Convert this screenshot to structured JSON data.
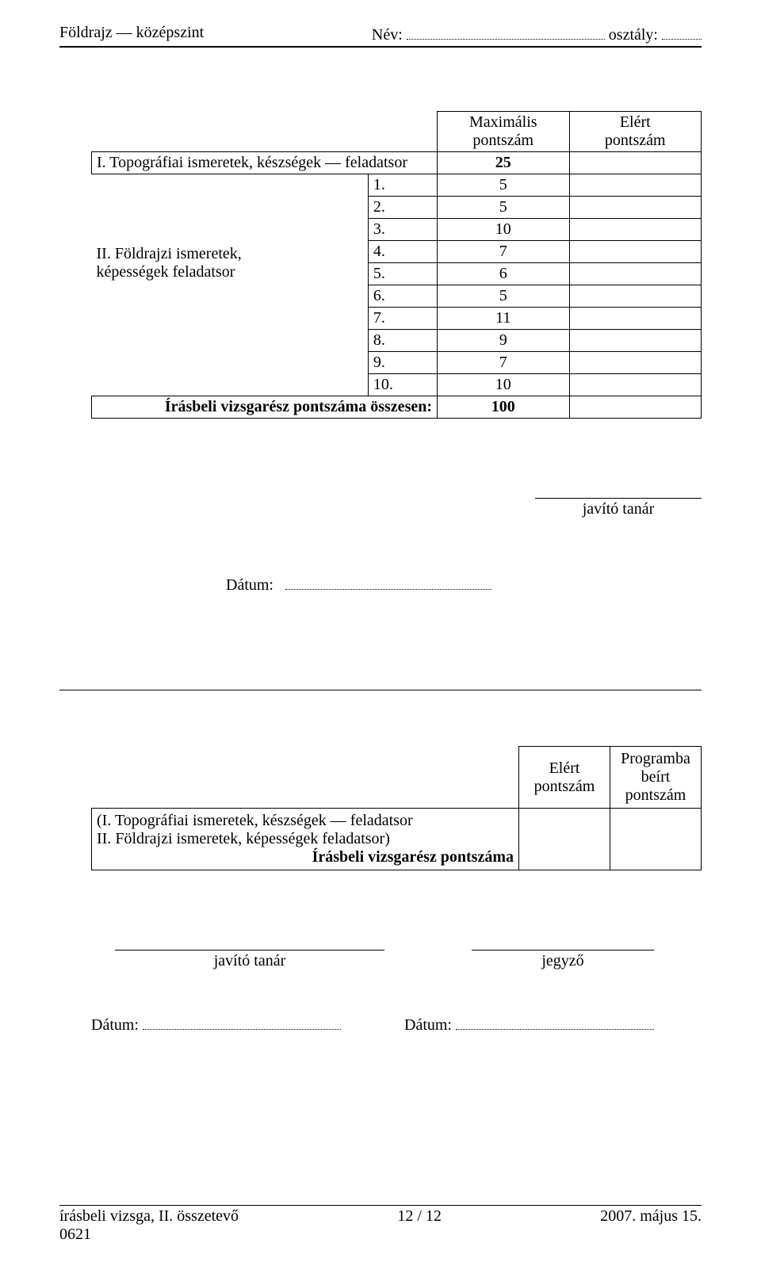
{
  "header": {
    "subject_level": "Földrajz — középszint",
    "name_label": "Név:",
    "class_label": "osztály:"
  },
  "score_table": {
    "head_max_1": "Maximális",
    "head_max_2": "pontszám",
    "head_got_1": "Elért",
    "head_got_2": "pontszám",
    "row_topo_label": "I. Topográfiai ismeretek, készségek — feladatsor",
    "row_topo_max": "25",
    "group_label_1": "II. Földrajzi ismeretek,",
    "group_label_2": "képességek feladatsor",
    "items": [
      {
        "n": "1.",
        "max": "5"
      },
      {
        "n": "2.",
        "max": "5"
      },
      {
        "n": "3.",
        "max": "10"
      },
      {
        "n": "4.",
        "max": "7"
      },
      {
        "n": "5.",
        "max": "6"
      },
      {
        "n": "6.",
        "max": "5"
      },
      {
        "n": "7.",
        "max": "11"
      },
      {
        "n": "8.",
        "max": "9"
      },
      {
        "n": "9.",
        "max": "7"
      },
      {
        "n": "10.",
        "max": "10"
      }
    ],
    "total_label": "Írásbeli vizsgarész pontszáma összesen:",
    "total_max": "100"
  },
  "sig1": {
    "label": "javító tanár"
  },
  "date1": {
    "label": "Dátum:"
  },
  "second_table": {
    "head_left_1": "Elért",
    "head_left_2": "pontszám",
    "head_right_1": "Programba",
    "head_right_2": "beírt",
    "head_right_3": "pontszám",
    "body_line1": "(I. Topográfiai ismeretek, készségek — feladatsor",
    "body_line2": "II. Földrajzi ismeretek, képességek feladatsor)",
    "body_line3": "Írásbeli vizsgarész pontszáma"
  },
  "sig_row": {
    "left": "javító tanár",
    "right": "jegyző"
  },
  "date_row": {
    "label": "Dátum:"
  },
  "footer": {
    "left_1": "írásbeli vizsga, II. összetevő",
    "left_2": "0621",
    "center": "12 / 12",
    "right": "2007. május 15."
  }
}
